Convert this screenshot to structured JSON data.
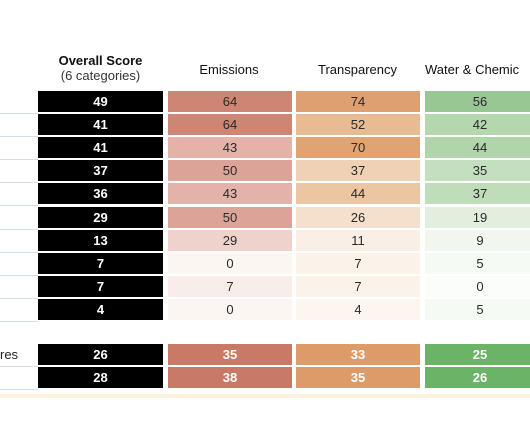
{
  "headers": {
    "overall_line1": "Overall Score",
    "overall_line2": "(6 categories)",
    "emissions": "Emissions",
    "transparency": "Transparency",
    "water": "Water & Chemic"
  },
  "rows": [
    {
      "overall": "49",
      "emissions": "64",
      "transparency": "74",
      "water": "56",
      "colors": [
        "#ce8574",
        "#dea070",
        "#99c794"
      ]
    },
    {
      "overall": "41",
      "emissions": "64",
      "transparency": "52",
      "water": "42",
      "colors": [
        "#ce8574",
        "#e8bb92",
        "#b4d7ae"
      ]
    },
    {
      "overall": "41",
      "emissions": "43",
      "transparency": "70",
      "water": "44",
      "colors": [
        "#e4b2a8",
        "#dfa472",
        "#b0d5aa"
      ]
    },
    {
      "overall": "37",
      "emissions": "50",
      "transparency": "37",
      "water": "35",
      "colors": [
        "#dca499",
        "#efd2b5",
        "#c4dfbf"
      ]
    },
    {
      "overall": "36",
      "emissions": "43",
      "transparency": "44",
      "water": "37",
      "colors": [
        "#e4b2a8",
        "#ecc6a3",
        "#c0ddba"
      ]
    },
    {
      "overall": "29",
      "emissions": "50",
      "transparency": "26",
      "water": "19",
      "colors": [
        "#dca499",
        "#f4e0cc",
        "#e2efdf"
      ]
    },
    {
      "overall": "13",
      "emissions": "29",
      "transparency": "11",
      "water": "9",
      "colors": [
        "#efd2cb",
        "#f9efe4",
        "#f1f7ef"
      ]
    },
    {
      "overall": "7",
      "emissions": "0",
      "transparency": "7",
      "water": "5",
      "colors": [
        "#fcf6f3",
        "#fbf3ea",
        "#f5faf4"
      ]
    },
    {
      "overall": "7",
      "emissions": "7",
      "transparency": "7",
      "water": "0",
      "colors": [
        "#f9ede9",
        "#fbf3ea",
        "#fbfdfa"
      ]
    },
    {
      "overall": "4",
      "emissions": "0",
      "transparency": "4",
      "water": "5",
      "colors": [
        "#fcf6f3",
        "#fcf6ef",
        "#f5faf4"
      ]
    }
  ],
  "summary_rows": [
    {
      "label": "res",
      "overall": "26",
      "emissions": "35",
      "transparency": "33",
      "water": "25",
      "colors": [
        "#c97a66",
        "#dc9b68",
        "#6bb366"
      ]
    },
    {
      "label": "",
      "overall": "28",
      "emissions": "38",
      "transparency": "35",
      "water": "26",
      "colors": [
        "#c97a66",
        "#dc9b68",
        "#6bb366"
      ]
    }
  ]
}
